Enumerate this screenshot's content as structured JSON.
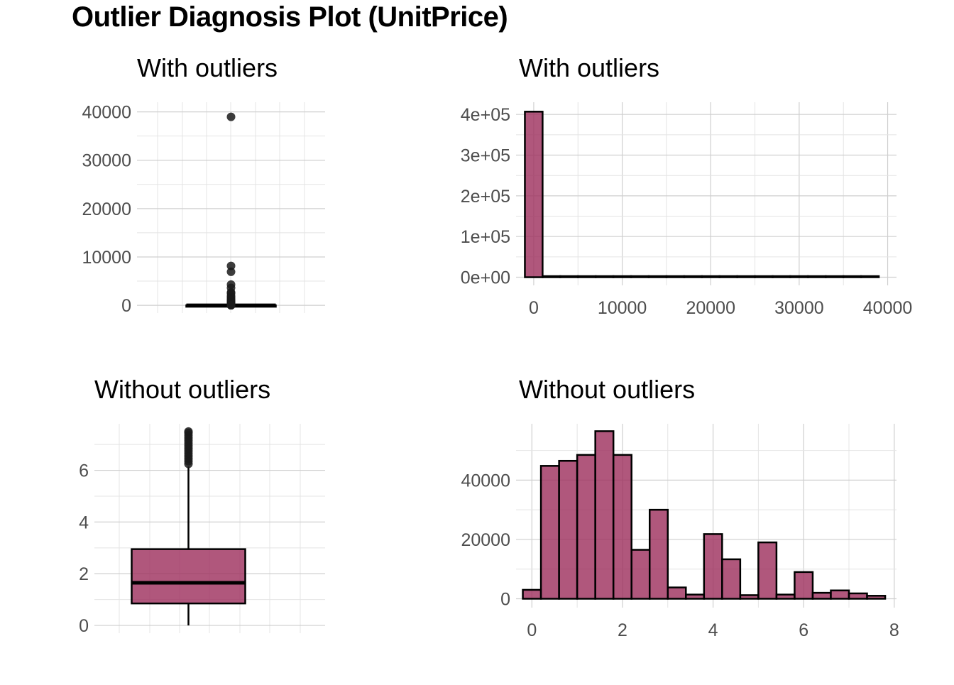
{
  "title": "Outlier Diagnosis Plot (UnitPrice)",
  "colors": {
    "fill": "#9c2d5b",
    "fill_opacity": 0.8,
    "outline": "#000000",
    "points": "#1a1a1a"
  },
  "chart_data": [
    {
      "type": "box",
      "title": "With outliers",
      "yticks": [
        0,
        10000,
        20000,
        30000,
        40000
      ],
      "ytick_labels": [
        "0",
        "10000",
        "20000",
        "30000",
        "40000"
      ],
      "ylim": [
        -1600,
        42000
      ],
      "box": {
        "min": 0,
        "q1": 1.25,
        "median": 1.95,
        "q3": 3.75,
        "max": 7.5
      },
      "outliers": [
        38970,
        8142.75,
        6930,
        4287.63,
        3610.5,
        2653.95,
        2500,
        1950,
        1687.17,
        1350,
        1136.3,
        950.99,
        800,
        649.5,
        570,
        450,
        350,
        295,
        250,
        195,
        150,
        120,
        95,
        80,
        65,
        50,
        40,
        30,
        20,
        15,
        12,
        10,
        8
      ]
    },
    {
      "type": "histogram",
      "title": "With outliers",
      "xticks": [
        0,
        10000,
        20000,
        30000,
        40000
      ],
      "xtick_labels": [
        "0",
        "10000",
        "20000",
        "30000",
        "40000"
      ],
      "yticks": [
        0,
        100000,
        200000,
        300000,
        400000
      ],
      "ytick_labels": [
        "0e+00",
        "1e+05",
        "2e+05",
        "3e+05",
        "4e+05"
      ],
      "xlim": [
        -2000,
        41000
      ],
      "ylim": [
        -20000,
        430000
      ],
      "bin_width": 2000,
      "bins_start": -1000,
      "counts": [
        406800,
        30,
        8,
        4,
        2,
        2,
        1,
        1,
        1,
        1,
        1,
        1,
        1,
        1,
        1,
        1,
        1,
        1,
        1,
        1
      ]
    },
    {
      "type": "box",
      "title": "Without outliers",
      "yticks": [
        0,
        2,
        4,
        6
      ],
      "ytick_labels": [
        "0",
        "2",
        "4",
        "6"
      ],
      "ylim": [
        -0.3,
        7.8
      ],
      "box": {
        "min": 0,
        "q1": 0.85,
        "median": 1.65,
        "q3": 2.95,
        "max": 6.15
      },
      "outliers": [
        6.25,
        6.35,
        6.45,
        6.55,
        6.65,
        6.75,
        6.85,
        6.95,
        7.05,
        7.15,
        7.25,
        7.35,
        7.45,
        7.5
      ]
    },
    {
      "type": "histogram",
      "title": "Without outliers",
      "xticks": [
        0,
        2,
        4,
        6,
        8
      ],
      "xtick_labels": [
        "0",
        "2",
        "4",
        "6",
        "8"
      ],
      "yticks": [
        0,
        20000,
        40000
      ],
      "ytick_labels": [
        "0",
        "20000",
        "40000"
      ],
      "xlim": [
        -0.35,
        8.05
      ],
      "ylim": [
        -3000,
        59000
      ],
      "bin_width": 0.4,
      "bins_start": -0.2,
      "counts": [
        3000,
        44800,
        46500,
        48500,
        56500,
        48500,
        16500,
        30000,
        3800,
        1400,
        21800,
        13300,
        1200,
        19000,
        1400,
        9000,
        2000,
        2800,
        1800,
        1000
      ]
    }
  ]
}
